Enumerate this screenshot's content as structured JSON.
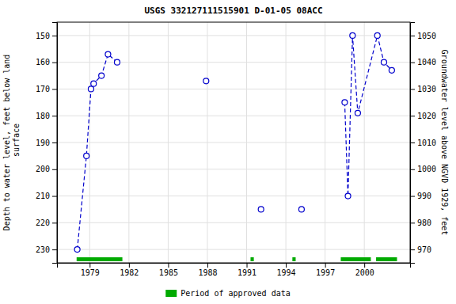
{
  "chart_data": {
    "type": "line",
    "title": "USGS 332127111515901 D-01-05 08ACC",
    "ylabel": "Depth to water level, feet below land\n surface",
    "y2label": "Groundwater level above NGVD 1929, feet",
    "xlim": [
      1976.5,
      2003.5
    ],
    "xticks": [
      1979,
      1982,
      1985,
      1988,
      1991,
      1994,
      1997,
      2000
    ],
    "ylim": [
      235,
      145
    ],
    "yticks": [
      150,
      160,
      170,
      180,
      190,
      200,
      210,
      220,
      230
    ],
    "y2lim": [
      965,
      1055
    ],
    "y2ticks": [
      970,
      980,
      990,
      1000,
      1010,
      1020,
      1030,
      1040,
      1050
    ],
    "grid": true,
    "legend": "bottom",
    "series": [
      {
        "type": "line",
        "x": [
          1978.05,
          1978.75,
          1979.1,
          1979.3,
          1979.9,
          1980.4,
          1981.1
        ],
        "values": [
          230,
          195,
          170,
          168,
          165,
          157,
          160
        ],
        "color": "#0000cc",
        "marker": "circle",
        "line_style": "dashed"
      },
      {
        "type": "line",
        "x": [
          1987.9
        ],
        "values": [
          167
        ],
        "color": "#0000cc",
        "marker": "circle",
        "line_style": "dashed"
      },
      {
        "type": "line",
        "x": [
          1992.1
        ],
        "values": [
          215
        ],
        "color": "#0000cc",
        "marker": "circle",
        "line_style": "dashed"
      },
      {
        "type": "line",
        "x": [
          1995.2
        ],
        "values": [
          215
        ],
        "color": "#0000cc",
        "marker": "circle",
        "line_style": "dashed"
      },
      {
        "type": "line",
        "x": [
          1998.5,
          1998.75,
          1999.1,
          1999.5,
          2001.0,
          2001.5,
          2002.1
        ],
        "values": [
          175,
          210,
          150,
          179,
          150,
          160,
          163
        ],
        "color": "#0000cc",
        "marker": "circle",
        "line_style": "dashed"
      },
      {
        "type": "span",
        "name": "Period of approved data",
        "color": "#00aa00",
        "start": [
          1978.0,
          1991.3,
          1994.5,
          1998.2,
          2000.9
        ],
        "end": [
          1981.5,
          1991.55,
          1994.75,
          2000.5,
          2002.5
        ]
      }
    ]
  }
}
